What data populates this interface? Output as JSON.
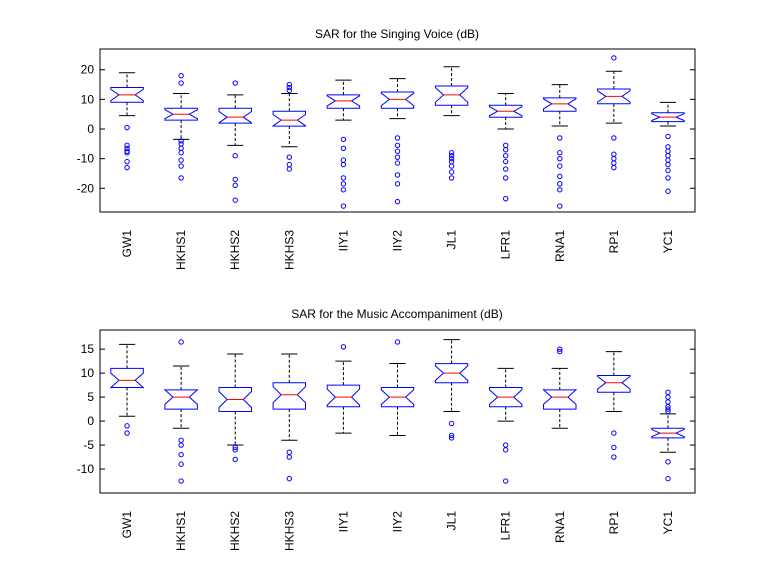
{
  "figure": {
    "background": "#ffffff",
    "box_color": "#0000ff",
    "median_color": "#ff0000",
    "whisker_color": "#000000",
    "outlier_color": "#0000ff"
  },
  "chart_data": [
    {
      "type": "boxplot",
      "notched": true,
      "title": "SAR for the Singing Voice (dB)",
      "xlabel": "",
      "ylabel": "",
      "ylim": [
        -28,
        27
      ],
      "yticks": [
        -20,
        -10,
        0,
        10,
        20
      ],
      "ytick_labels": [
        "-20",
        "-10",
        "0",
        "10",
        "20"
      ],
      "grid": false,
      "categories": [
        "GW1",
        "HKHS1",
        "HKHS2",
        "HKHS3",
        "IIY1",
        "IIY2",
        "JL1",
        "LFR1",
        "RNA1",
        "RP1",
        "YC1"
      ],
      "boxes": [
        {
          "whisker_low": 4.5,
          "q1": 9.0,
          "median": 11.5,
          "q3": 14.0,
          "whisker_high": 19.0,
          "outliers": [
            0.5,
            -5.5,
            -6.5,
            -7.5,
            -8.0,
            -11.0,
            -13.0
          ]
        },
        {
          "whisker_low": -3.5,
          "q1": 3.0,
          "median": 5.0,
          "q3": 7.0,
          "whisker_high": 12.0,
          "outliers": [
            18.0,
            15.5,
            -4.0,
            -5.0,
            -6.5,
            -8.0,
            -10.5,
            -12.5,
            -16.5
          ]
        },
        {
          "whisker_low": -5.5,
          "q1": 2.0,
          "median": 4.0,
          "q3": 7.0,
          "whisker_high": 11.5,
          "outliers": [
            15.5,
            -9.0,
            -17.0,
            -19.0,
            -24.0
          ]
        },
        {
          "whisker_low": -6.0,
          "q1": 1.0,
          "median": 3.0,
          "q3": 6.0,
          "whisker_high": 12.0,
          "outliers": [
            14.0,
            15.0,
            13.0,
            -9.5,
            -12.0,
            -13.5
          ]
        },
        {
          "whisker_low": 3.0,
          "q1": 7.0,
          "median": 9.5,
          "q3": 11.5,
          "whisker_high": 16.5,
          "outliers": [
            -3.5,
            -6.5,
            -10.5,
            -12.0,
            -16.5,
            -18.5,
            -20.5,
            -26.0
          ]
        },
        {
          "whisker_low": 3.5,
          "q1": 7.0,
          "median": 10.0,
          "q3": 12.5,
          "whisker_high": 17.0,
          "outliers": [
            -3.0,
            -5.5,
            -7.5,
            -9.5,
            -11.5,
            -15.5,
            -18.5,
            -24.5
          ]
        },
        {
          "whisker_low": 4.5,
          "q1": 8.0,
          "median": 11.5,
          "q3": 14.5,
          "whisker_high": 21.0,
          "outliers": [
            -8.0,
            -9.0,
            -10.0,
            -11.0,
            -12.5,
            -14.5,
            -16.5
          ]
        },
        {
          "whisker_low": 0.0,
          "q1": 4.0,
          "median": 6.0,
          "q3": 8.0,
          "whisker_high": 12.0,
          "outliers": [
            -5.5,
            -7.0,
            -9.0,
            -11.0,
            -13.5,
            -16.5,
            -23.5
          ]
        },
        {
          "whisker_low": 1.0,
          "q1": 6.0,
          "median": 8.5,
          "q3": 10.5,
          "whisker_high": 15.0,
          "outliers": [
            -3.0,
            -8.0,
            -10.0,
            -12.5,
            -16.0,
            -18.5,
            -20.5,
            -26.0
          ]
        },
        {
          "whisker_low": 2.0,
          "q1": 8.5,
          "median": 11.0,
          "q3": 13.5,
          "whisker_high": 19.5,
          "outliers": [
            24.0,
            -3.0,
            -8.5,
            -10.0,
            -11.5,
            -13.0
          ]
        },
        {
          "whisker_low": 1.0,
          "q1": 2.5,
          "median": 4.0,
          "q3": 5.5,
          "whisker_high": 9.0,
          "outliers": [
            -2.5,
            -6.0,
            -7.5,
            -9.0,
            -10.5,
            -12.0,
            -14.0,
            -16.5,
            -21.0
          ]
        }
      ]
    },
    {
      "type": "boxplot",
      "notched": true,
      "title": "SAR for the Music Accompaniment (dB)",
      "xlabel": "",
      "ylabel": "",
      "ylim": [
        -15,
        19
      ],
      "yticks": [
        -10,
        -5,
        0,
        5,
        10,
        15
      ],
      "ytick_labels": [
        "-10",
        "-5",
        "0",
        "5",
        "10",
        "15"
      ],
      "grid": false,
      "categories": [
        "GW1",
        "HKHS1",
        "HKHS2",
        "HKHS3",
        "IIY1",
        "IIY2",
        "JL1",
        "LFR1",
        "RNA1",
        "RP1",
        "YC1"
      ],
      "boxes": [
        {
          "whisker_low": 1.0,
          "q1": 7.0,
          "median": 8.5,
          "q3": 11.0,
          "whisker_high": 16.0,
          "outliers": [
            -1.0,
            -2.5
          ]
        },
        {
          "whisker_low": -1.5,
          "q1": 2.5,
          "median": 5.0,
          "q3": 6.5,
          "whisker_high": 11.5,
          "outliers": [
            16.5,
            -4.0,
            -5.0,
            -7.0,
            -9.0,
            -12.5
          ]
        },
        {
          "whisker_low": -5.0,
          "q1": 2.0,
          "median": 4.5,
          "q3": 7.0,
          "whisker_high": 14.0,
          "outliers": [
            -5.5,
            -6.0,
            -8.0
          ]
        },
        {
          "whisker_low": -4.0,
          "q1": 2.5,
          "median": 5.5,
          "q3": 8.0,
          "whisker_high": 14.0,
          "outliers": [
            -6.5,
            -7.5,
            -12.0
          ]
        },
        {
          "whisker_low": -2.5,
          "q1": 3.0,
          "median": 5.0,
          "q3": 7.5,
          "whisker_high": 12.5,
          "outliers": [
            15.5
          ]
        },
        {
          "whisker_low": -3.0,
          "q1": 3.0,
          "median": 5.0,
          "q3": 7.0,
          "whisker_high": 12.0,
          "outliers": [
            16.5
          ]
        },
        {
          "whisker_low": 2.0,
          "q1": 8.0,
          "median": 10.0,
          "q3": 12.0,
          "whisker_high": 17.0,
          "outliers": [
            -0.5,
            -3.0,
            -3.5
          ]
        },
        {
          "whisker_low": 0.0,
          "q1": 3.0,
          "median": 5.0,
          "q3": 7.0,
          "whisker_high": 11.0,
          "outliers": [
            -5.0,
            -6.0,
            -12.5
          ]
        },
        {
          "whisker_low": -1.5,
          "q1": 2.5,
          "median": 5.0,
          "q3": 6.5,
          "whisker_high": 11.0,
          "outliers": [
            14.5,
            15.0
          ]
        },
        {
          "whisker_low": 2.0,
          "q1": 6.0,
          "median": 8.0,
          "q3": 9.5,
          "whisker_high": 14.5,
          "outliers": [
            -2.5,
            -5.5,
            -7.5
          ]
        },
        {
          "whisker_low": -6.5,
          "q1": -3.5,
          "median": -2.5,
          "q3": -1.5,
          "whisker_high": 1.5,
          "outliers": [
            6.0,
            5.0,
            4.0,
            3.0,
            2.5,
            2.0,
            -8.5,
            -12.0
          ]
        }
      ]
    }
  ]
}
